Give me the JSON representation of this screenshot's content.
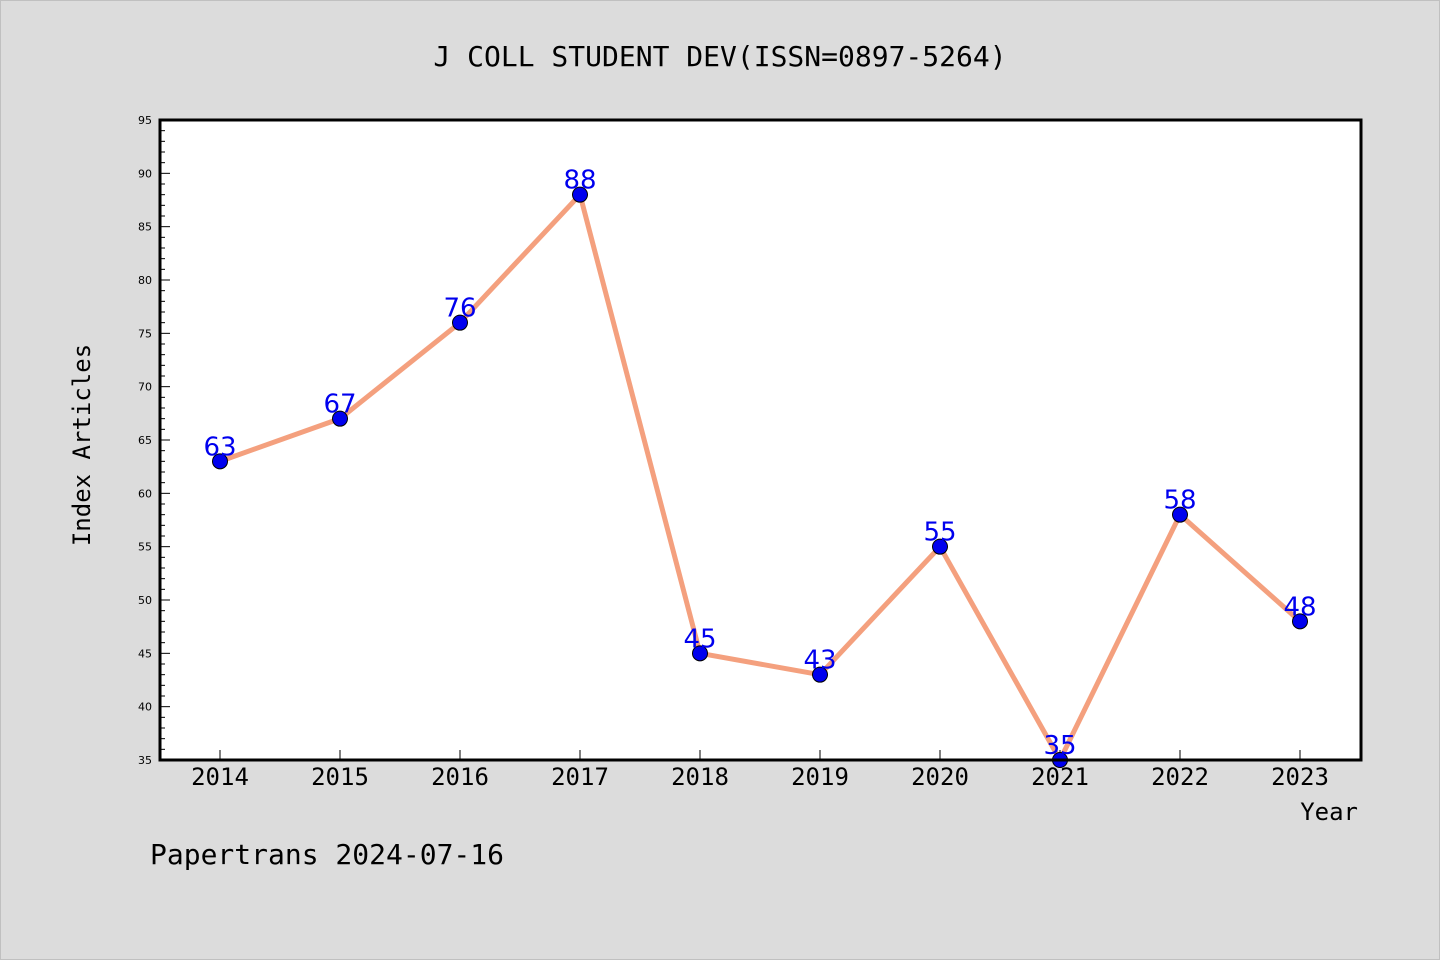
{
  "chart_data": {
    "type": "line",
    "title": "J COLL STUDENT DEV(ISSN=0897-5264)",
    "xlabel": "Year",
    "ylabel": "Index Articles",
    "footer": "Papertrans 2024-07-16",
    "categories": [
      "2014",
      "2015",
      "2016",
      "2017",
      "2018",
      "2019",
      "2020",
      "2021",
      "2022",
      "2023"
    ],
    "values": [
      63,
      67,
      76,
      88,
      45,
      43,
      55,
      35,
      58,
      48
    ],
    "ylim": [
      35,
      95
    ],
    "yticks": [
      35,
      40,
      45,
      50,
      55,
      60,
      65,
      70,
      75,
      80,
      85,
      90,
      95
    ],
    "grid": false,
    "line_color": "#f4a07e",
    "marker_color": "#0000ee",
    "label_color": "#0000ee"
  }
}
